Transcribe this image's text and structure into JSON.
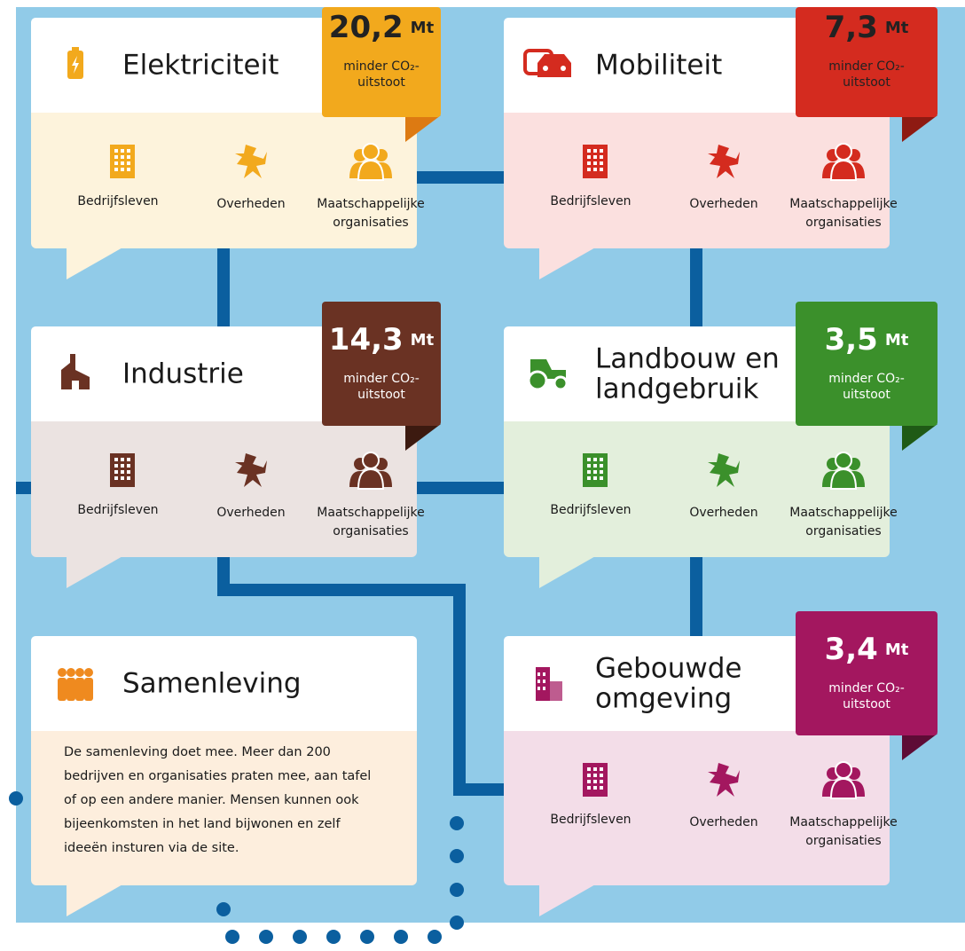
{
  "cards": [
    {
      "title": [
        "Elektriciteit"
      ],
      "color": "#f2a91d",
      "fold": "#dd7a12",
      "background": "#fdf3dc",
      "amount": "20,2",
      "unit": "Mt",
      "badge": [
        "minder CO₂-",
        "uitstoot"
      ],
      "actors": [
        [
          "Bedrijfsleven"
        ],
        [
          "Overheden"
        ],
        [
          "Maatschappelijke",
          "organisaties"
        ]
      ]
    },
    {
      "title": [
        "Mobiliteit"
      ],
      "color": "#d42b1f",
      "fold": "#8e1a12",
      "background": "#fbe0df",
      "amount": "7,3",
      "unit": "Mt",
      "badge": [
        "minder CO₂-",
        "uitstoot"
      ],
      "actors": [
        [
          "Bedrijfsleven"
        ],
        [
          "Overheden"
        ],
        [
          "Maatschappelijke",
          "organisaties"
        ]
      ]
    },
    {
      "title": [
        "Industrie"
      ],
      "color": "#6a3223",
      "fold": "#3c1a10",
      "background": "#ebe3e1",
      "amount": "14,3",
      "unit": "Mt",
      "badge": [
        "minder CO₂-",
        "uitstoot"
      ],
      "actors": [
        [
          "Bedrijfsleven"
        ],
        [
          "Overheden"
        ],
        [
          "Maatschappelijke",
          "organisaties"
        ]
      ]
    },
    {
      "title": [
        "Landbouw en",
        "landgebruik"
      ],
      "color": "#3b902b",
      "fold": "#1f5a16",
      "background": "#e3efdc",
      "amount": "3,5",
      "unit": "Mt",
      "badge": [
        "minder CO₂-",
        "uitstoot"
      ],
      "actors": [
        [
          "Bedrijfsleven"
        ],
        [
          "Overheden"
        ],
        [
          "Maatschappelijke",
          "organisaties"
        ]
      ]
    },
    {
      "title": [
        "Samenleving"
      ],
      "color": "#ef8a1f",
      "background": "#fdeedd",
      "description": [
        "De samenleving doet mee. Meer dan 200",
        "bedrijven en organisaties praten mee, aan tafel",
        "of op een andere manier. Mensen kunnen ook",
        "bijeenkomsten in het land bijwonen en zelf",
        "ideeën insturen via de site."
      ]
    },
    {
      "title": [
        "Gebouwde",
        "omgeving"
      ],
      "color": "#a3175f",
      "fold": "#5e0c36",
      "background": "#f3dde8",
      "amount": "3,4",
      "unit": "Mt",
      "badge": [
        "minder CO₂-",
        "uitstoot"
      ],
      "actors": [
        [
          "Bedrijfsleven"
        ],
        [
          "Overheden"
        ],
        [
          "Maatschappelijke",
          "organisaties"
        ]
      ]
    }
  ]
}
